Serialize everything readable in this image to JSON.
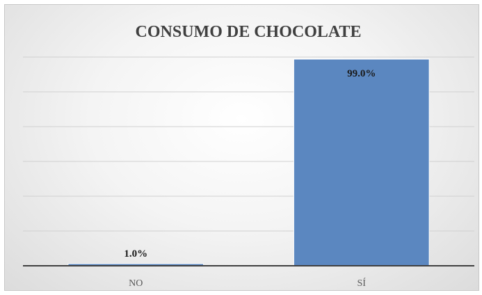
{
  "chart_data": {
    "type": "bar",
    "title": "CONSUMO DE CHOCOLATE",
    "categories": [
      "NO",
      "SÍ"
    ],
    "values": [
      1.0,
      99.0
    ],
    "data_labels": [
      "1.0%",
      "99.0%"
    ],
    "ylim": [
      0,
      100
    ],
    "grid": true,
    "legend": "none",
    "bar_color": "#5b87c0",
    "bar_edge_color": "#ffffff"
  }
}
